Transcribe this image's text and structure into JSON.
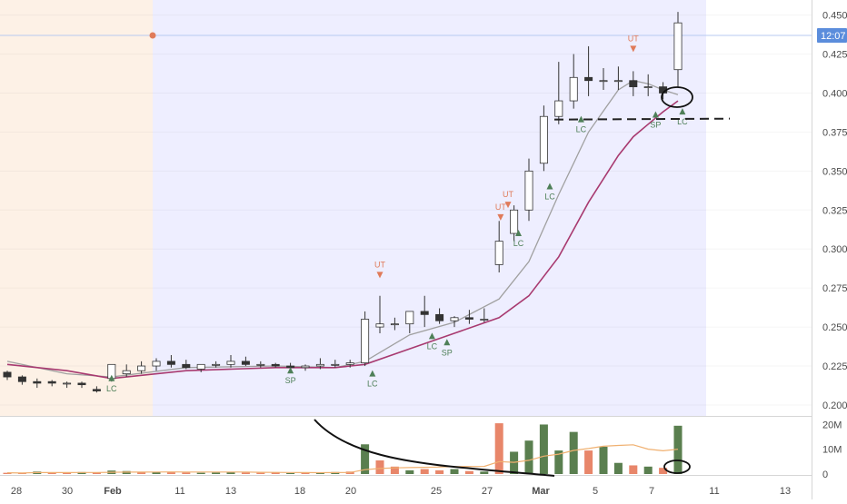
{
  "price_scale": {
    "ticks": [
      "0.450",
      "0.425",
      "0.400",
      "0.375",
      "0.350",
      "0.325",
      "0.300",
      "0.275",
      "0.250",
      "0.225",
      "0.200"
    ],
    "current_label": "12:07",
    "current_value": 0.445
  },
  "volume_scale": {
    "ticks": [
      "20M",
      "10M",
      "0"
    ]
  },
  "time_axis": {
    "labels": [
      "28",
      "30",
      "Feb",
      "11",
      "13",
      "18",
      "20",
      "25",
      "27",
      "Mar",
      "5",
      "7",
      "11",
      "13"
    ],
    "bold_labels": [
      "Feb",
      "Mar"
    ]
  },
  "colors": {
    "pre_market_shade": "#fdf1e6",
    "session_shade": "#eeeeff",
    "candle_body": "#ffffff",
    "candle_outline": "#333333",
    "ma_fast": "#a0a0a0",
    "ma_slow": "#a83a70",
    "up_marker": "#4e7f58",
    "down_marker": "#e07b5a",
    "volume_up": "#5a7f4f",
    "volume_down": "#e8866a",
    "volume_ma": "#f0b070",
    "price_label_bg": "#5b8ddc"
  },
  "annotations": [
    {
      "text": "LC",
      "kind": "up",
      "x": 7.0,
      "y": 0.217
    },
    {
      "text": "SP",
      "kind": "up",
      "x": 19.0,
      "y": 0.222
    },
    {
      "text": "LC",
      "kind": "up",
      "x": 24.5,
      "y": 0.22
    },
    {
      "text": "UT",
      "kind": "down",
      "x": 25.0,
      "y": 0.283
    },
    {
      "text": "LC",
      "kind": "up",
      "x": 28.5,
      "y": 0.244
    },
    {
      "text": "SP",
      "kind": "up",
      "x": 29.5,
      "y": 0.24
    },
    {
      "text": "UT",
      "kind": "down",
      "x": 33.1,
      "y": 0.32
    },
    {
      "text": "UT",
      "kind": "down",
      "x": 33.6,
      "y": 0.328
    },
    {
      "text": "LC",
      "kind": "up",
      "x": 34.3,
      "y": 0.31
    },
    {
      "text": "LC",
      "kind": "up",
      "x": 36.4,
      "y": 0.34
    },
    {
      "text": "LC",
      "kind": "up",
      "x": 38.5,
      "y": 0.383
    },
    {
      "text": "UT",
      "kind": "down",
      "x": 42.0,
      "y": 0.428
    },
    {
      "text": "SP",
      "kind": "up",
      "x": 43.5,
      "y": 0.386
    },
    {
      "text": "LC",
      "kind": "up",
      "x": 45.3,
      "y": 0.388
    }
  ],
  "chart_data": {
    "type": "candlestick",
    "x_domain": [
      0,
      50
    ],
    "ylim": [
      0.193,
      0.455
    ],
    "volume_ylim": [
      0,
      22
    ],
    "volume_unit": "M",
    "series": [
      {
        "name": "price",
        "x": [
          0,
          1,
          2,
          3,
          4,
          5,
          6,
          7,
          8,
          9,
          10,
          11,
          12,
          13,
          14,
          15,
          16,
          17,
          18,
          19,
          20,
          21,
          22,
          23,
          24,
          25,
          26,
          27,
          28,
          29,
          30,
          31,
          32,
          33,
          34,
          35,
          36,
          37,
          38,
          39,
          40,
          41,
          42,
          43,
          44,
          45
        ],
        "open": [
          0.221,
          0.218,
          0.215,
          0.215,
          0.214,
          0.214,
          0.21,
          0.217,
          0.22,
          0.222,
          0.225,
          0.228,
          0.226,
          0.223,
          0.226,
          0.226,
          0.228,
          0.226,
          0.226,
          0.225,
          0.224,
          0.225,
          0.226,
          0.226,
          0.227,
          0.25,
          0.252,
          0.252,
          0.26,
          0.258,
          0.254,
          0.256,
          0.255,
          0.29,
          0.31,
          0.325,
          0.355,
          0.385,
          0.395,
          0.41,
          0.408,
          0.408,
          0.408,
          0.404,
          0.404,
          0.415
        ],
        "high": [
          0.222,
          0.219,
          0.217,
          0.216,
          0.215,
          0.215,
          0.212,
          0.226,
          0.226,
          0.228,
          0.23,
          0.232,
          0.229,
          0.226,
          0.228,
          0.232,
          0.231,
          0.228,
          0.227,
          0.227,
          0.226,
          0.23,
          0.229,
          0.229,
          0.26,
          0.27,
          0.256,
          0.258,
          0.27,
          0.262,
          0.257,
          0.261,
          0.262,
          0.318,
          0.328,
          0.358,
          0.392,
          0.42,
          0.425,
          0.43,
          0.416,
          0.417,
          0.414,
          0.412,
          0.407,
          0.452
        ],
        "low": [
          0.216,
          0.213,
          0.211,
          0.212,
          0.211,
          0.211,
          0.208,
          0.215,
          0.218,
          0.22,
          0.222,
          0.224,
          0.223,
          0.221,
          0.224,
          0.224,
          0.225,
          0.224,
          0.224,
          0.223,
          0.222,
          0.223,
          0.224,
          0.224,
          0.225,
          0.246,
          0.248,
          0.246,
          0.25,
          0.252,
          0.25,
          0.252,
          0.253,
          0.285,
          0.305,
          0.318,
          0.35,
          0.38,
          0.39,
          0.398,
          0.402,
          0.402,
          0.398,
          0.398,
          0.396,
          0.404
        ],
        "close": [
          0.218,
          0.215,
          0.214,
          0.214,
          0.214,
          0.213,
          0.209,
          0.226,
          0.222,
          0.225,
          0.228,
          0.226,
          0.224,
          0.226,
          0.226,
          0.228,
          0.226,
          0.226,
          0.225,
          0.224,
          0.225,
          0.226,
          0.226,
          0.227,
          0.255,
          0.252,
          0.252,
          0.26,
          0.258,
          0.254,
          0.256,
          0.255,
          0.255,
          0.305,
          0.325,
          0.35,
          0.385,
          0.395,
          0.41,
          0.408,
          0.408,
          0.408,
          0.404,
          0.404,
          0.4,
          0.445
        ]
      },
      {
        "name": "ma_fast",
        "x": [
          0,
          4,
          7,
          12,
          18,
          22,
          24,
          27,
          30,
          33,
          35,
          37,
          39,
          41,
          42,
          43,
          44,
          45
        ],
        "values": [
          0.228,
          0.22,
          0.218,
          0.224,
          0.225,
          0.224,
          0.228,
          0.245,
          0.253,
          0.268,
          0.292,
          0.335,
          0.375,
          0.402,
          0.408,
          0.406,
          0.402,
          0.399
        ]
      },
      {
        "name": "ma_slow",
        "x": [
          0,
          4,
          7,
          12,
          18,
          22,
          24,
          27,
          30,
          33,
          35,
          37,
          39,
          41,
          42,
          43,
          44,
          45
        ],
        "values": [
          0.226,
          0.222,
          0.217,
          0.222,
          0.224,
          0.224,
          0.226,
          0.236,
          0.246,
          0.256,
          0.27,
          0.295,
          0.33,
          0.36,
          0.372,
          0.38,
          0.388,
          0.395
        ]
      },
      {
        "name": "volume",
        "x": [
          0,
          1,
          2,
          3,
          4,
          5,
          6,
          7,
          8,
          9,
          10,
          11,
          12,
          13,
          14,
          15,
          16,
          17,
          18,
          19,
          20,
          21,
          22,
          23,
          24,
          25,
          26,
          27,
          28,
          29,
          30,
          31,
          32,
          33,
          34,
          35,
          36,
          37,
          38,
          39,
          40,
          41,
          42,
          43,
          44,
          45
        ],
        "values": [
          0.5,
          0.3,
          1.0,
          0.6,
          0.5,
          0.8,
          0.6,
          1.4,
          1.2,
          0.8,
          0.9,
          0.7,
          0.6,
          0.5,
          0.6,
          0.7,
          0.6,
          0.5,
          0.6,
          0.4,
          0.5,
          0.6,
          0.8,
          1.0,
          12.0,
          5.5,
          3.0,
          1.5,
          2.0,
          1.5,
          2.0,
          1.2,
          1.0,
          20.5,
          9.0,
          13.5,
          20.0,
          9.5,
          17.0,
          9.5,
          11.0,
          4.5,
          3.5,
          3.0,
          2.5,
          19.5
        ],
        "up": [
          false,
          false,
          true,
          false,
          false,
          true,
          false,
          true,
          true,
          false,
          true,
          false,
          false,
          true,
          true,
          true,
          false,
          false,
          false,
          true,
          false,
          true,
          true,
          false,
          true,
          false,
          false,
          true,
          false,
          false,
          true,
          false,
          true,
          false,
          true,
          true,
          true,
          true,
          true,
          false,
          true,
          true,
          false,
          true,
          false,
          true
        ]
      }
    ],
    "levels": [
      {
        "name": "support",
        "y": 0.383,
        "style": "dashed"
      }
    ]
  }
}
